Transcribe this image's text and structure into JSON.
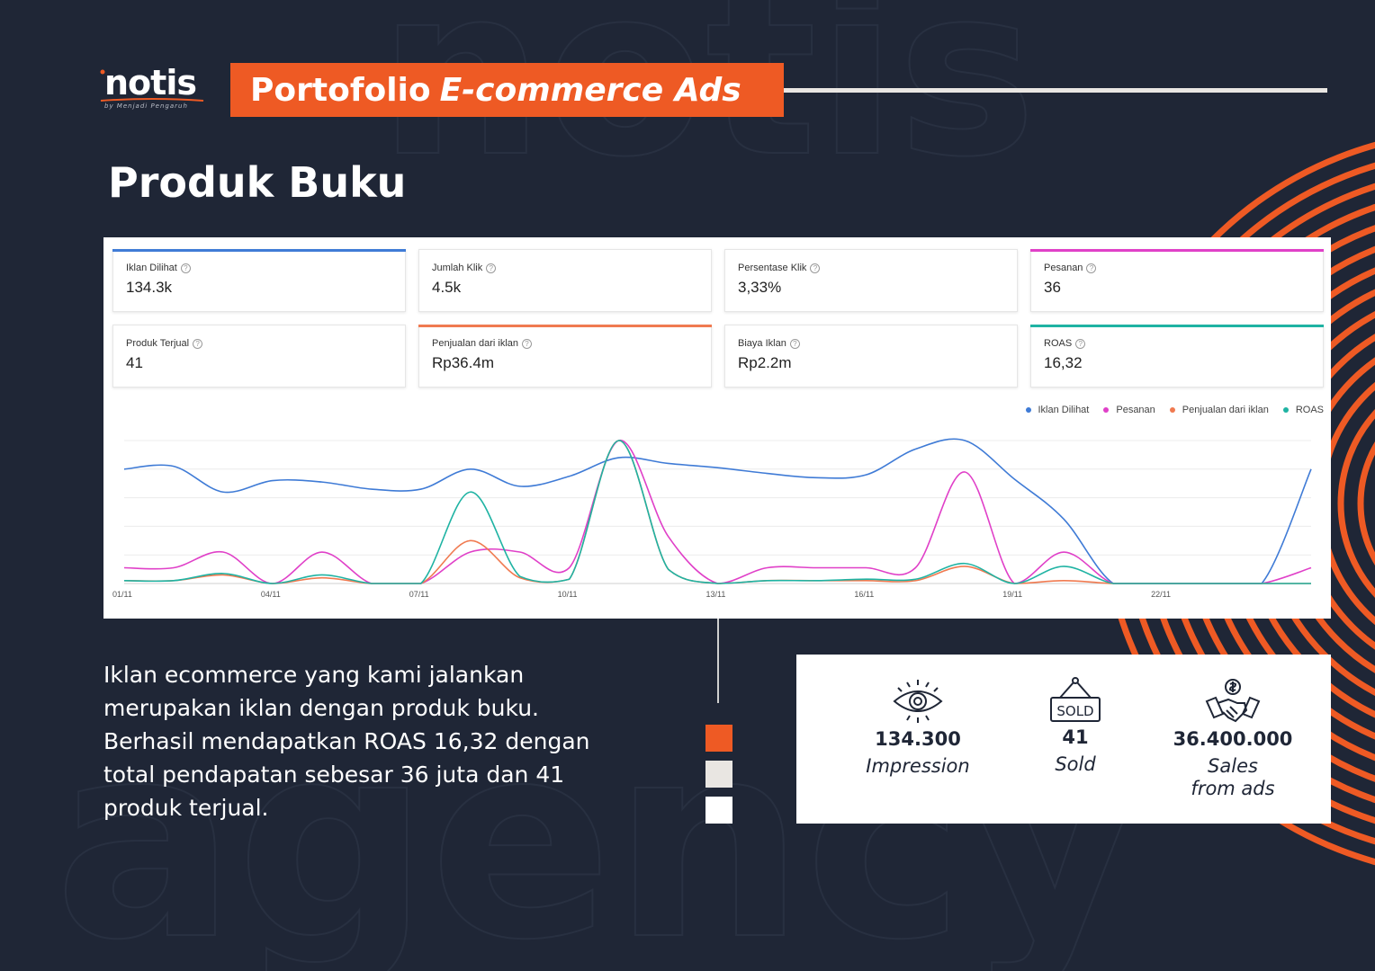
{
  "brand": {
    "logo_text": "notis",
    "tagline": "by Menjadi Pengaruh",
    "accent_color": "#ee5a24",
    "background_color": "#1f2636"
  },
  "header": {
    "title_plain": "Portofolio",
    "title_italic": "E-commerce Ads"
  },
  "section_title": "Produk Buku",
  "dashboard": {
    "cards": [
      {
        "label": "Iklan Dilihat",
        "value": "134.3k",
        "accent": "#3f7bd6"
      },
      {
        "label": "Jumlah Klik",
        "value": "4.5k",
        "accent": ""
      },
      {
        "label": "Persentase Klik",
        "value": "3,33%",
        "accent": ""
      },
      {
        "label": "Pesanan",
        "value": "36",
        "accent": "#e040c8"
      },
      {
        "label": "Produk Terjual",
        "value": "41",
        "accent": ""
      },
      {
        "label": "Penjualan dari iklan",
        "value": "Rp36.4m",
        "accent": "#f07a50"
      },
      {
        "label": "Biaya Iklan",
        "value": "Rp2.2m",
        "accent": ""
      },
      {
        "label": "ROAS",
        "value": "16,32",
        "accent": "#1fb3a3"
      }
    ],
    "help_icon": "question-circle-icon"
  },
  "chart_data": {
    "type": "line",
    "x": [
      "01/11",
      "02/11",
      "03/11",
      "04/11",
      "05/11",
      "06/11",
      "07/11",
      "08/11",
      "09/11",
      "10/11",
      "11/11",
      "12/11",
      "13/11",
      "14/11",
      "15/11",
      "16/11",
      "17/11",
      "18/11",
      "19/11",
      "20/11",
      "21/11",
      "22/11",
      "23/11",
      "24/11",
      "25/11"
    ],
    "tick_labels": [
      "01/11",
      "04/11",
      "07/11",
      "10/11",
      "13/11",
      "16/11",
      "19/11",
      "22/11"
    ],
    "series": [
      {
        "name": "Iklan Dilihat",
        "color": "#3f7bd6",
        "values": [
          0.8,
          0.82,
          0.64,
          0.72,
          0.71,
          0.66,
          0.66,
          0.8,
          0.68,
          0.75,
          0.88,
          0.84,
          0.81,
          0.77,
          0.74,
          0.76,
          0.94,
          1.0,
          0.73,
          0.45,
          0.0,
          0.0,
          0.0,
          0.0,
          0.8
        ]
      },
      {
        "name": "Pesanan",
        "color": "#e040c8",
        "values": [
          0.11,
          0.11,
          0.22,
          0.0,
          0.22,
          0.0,
          0.0,
          0.22,
          0.22,
          0.11,
          1.0,
          0.33,
          0.0,
          0.11,
          0.11,
          0.11,
          0.11,
          0.78,
          0.0,
          0.22,
          0.0,
          0.0,
          0.0,
          0.0,
          0.11
        ]
      },
      {
        "name": "Penjualan dari iklan",
        "color": "#f07a50",
        "values": [
          0.02,
          0.02,
          0.06,
          0.0,
          0.04,
          0.0,
          0.0,
          0.3,
          0.04,
          0.03,
          1.0,
          0.1,
          0.0,
          0.02,
          0.02,
          0.02,
          0.02,
          0.12,
          0.0,
          0.02,
          0.0,
          0.0,
          0.0,
          0.0,
          0.0
        ]
      },
      {
        "name": "ROAS",
        "color": "#1fb3a3",
        "values": [
          0.02,
          0.02,
          0.07,
          0.0,
          0.06,
          0.0,
          0.0,
          0.64,
          0.05,
          0.03,
          1.0,
          0.1,
          0.0,
          0.02,
          0.02,
          0.03,
          0.03,
          0.14,
          0.0,
          0.12,
          0.0,
          0.0,
          0.0,
          0.0,
          0.0
        ]
      }
    ],
    "legend_position": "top-right",
    "grid": true
  },
  "description": "Iklan ecommerce yang kami jalankan merupakan iklan dengan produk buku. Berhasil mendapatkan ROAS 16,32 dengan total pendapatan sebesar 36 juta dan 41 produk terjual.",
  "palette": [
    "#ee5a24",
    "#e9e6e2",
    "#ffffff"
  ],
  "stats": [
    {
      "icon": "eye-icon",
      "number": "134.300",
      "caption_1": "Impression",
      "caption_2": ""
    },
    {
      "icon": "sold-sign-icon",
      "number": "41",
      "caption_1": "Sold",
      "caption_2": "",
      "icon_text": "SOLD"
    },
    {
      "icon": "handshake-money-icon",
      "number": "36.400.000",
      "caption_1": "Sales",
      "caption_2": "from ads"
    }
  ]
}
